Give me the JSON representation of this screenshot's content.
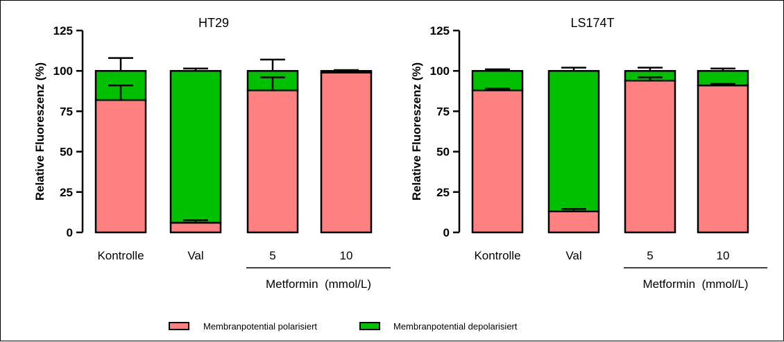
{
  "chart_data": [
    {
      "type": "bar",
      "stacked": true,
      "title": "HT29",
      "ylabel": "Relative Fluoreszenz (%)",
      "ylim": [
        0,
        125
      ],
      "yticks": [
        0,
        25,
        50,
        75,
        100,
        125
      ],
      "categories": [
        "Kontrolle",
        "Val",
        "5",
        "10"
      ],
      "group_label": "Metformin  (mmol/L)",
      "series": [
        {
          "name": "Membranpotential polarisiert",
          "values": [
            82,
            6,
            88,
            99
          ],
          "error": [
            9,
            1.5,
            8,
            0.5
          ]
        },
        {
          "name": "Membranpotential depolarisiert",
          "values": [
            18,
            94,
            12,
            1
          ],
          "error": [
            8,
            1.5,
            7,
            0.5
          ]
        }
      ]
    },
    {
      "type": "bar",
      "stacked": true,
      "title": "LS174T",
      "ylabel": "Relative Fluoreszenz (%)",
      "ylim": [
        0,
        125
      ],
      "yticks": [
        0,
        25,
        50,
        75,
        100,
        125
      ],
      "categories": [
        "Kontrolle",
        "Val",
        "5",
        "10"
      ],
      "group_label": "Metformin  (mmol/L)",
      "series": [
        {
          "name": "Membranpotential polarisiert",
          "values": [
            88,
            13,
            94,
            91
          ],
          "error": [
            1,
            1.5,
            2,
            1
          ]
        },
        {
          "name": "Membranpotential depolarisiert",
          "values": [
            12,
            87,
            6,
            9
          ],
          "error": [
            1,
            2,
            2,
            1.5
          ]
        }
      ]
    }
  ],
  "legend": {
    "position": "bottom",
    "items": [
      {
        "label": "Membranpotential polarisiert",
        "color": "#ff8080"
      },
      {
        "label": "Membranpotential depolarisiert",
        "color": "#00c000"
      }
    ]
  },
  "colors": {
    "polarisiert": "#ff8080",
    "depolarisiert": "#00c000",
    "axis": "#000000"
  }
}
